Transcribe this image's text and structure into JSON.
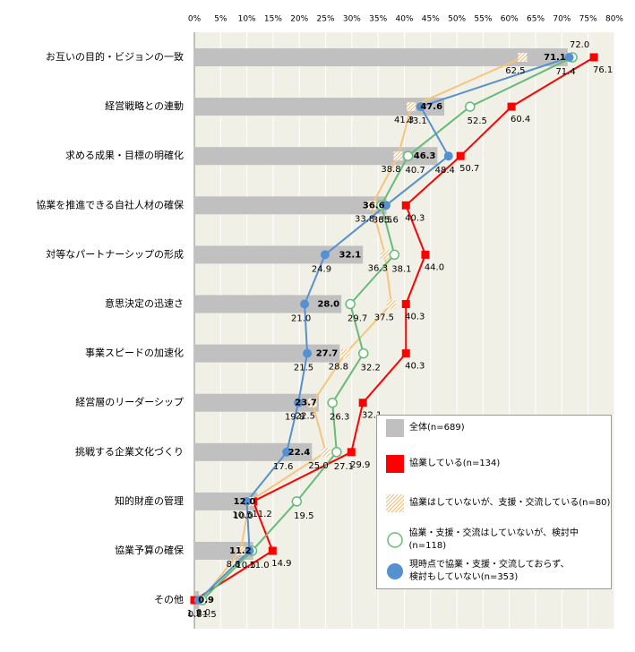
{
  "chart_data": {
    "type": "bar",
    "categories": [
      "お互いの目的・ビジョンの一致",
      "経営戦略との連動",
      "求める成果・目標の明確化",
      "協業を推進できる自社人材の確保",
      "対等なパートナーシップの形成",
      "意思決定の迅速さ",
      "事業スピードの加速化",
      "経営層のリーダーシップ",
      "挑戦する企業文化づくり",
      "知的財産の管理",
      "協業予算の確保",
      "その他"
    ],
    "xlim": [
      0,
      80
    ],
    "xticks": [
      {
        "value": 0,
        "label": "0%"
      },
      {
        "value": 5,
        "label": "5%"
      },
      {
        "value": 10,
        "label": "10%"
      },
      {
        "value": 15,
        "label": "15%"
      },
      {
        "value": 20,
        "label": "20%"
      },
      {
        "value": 25,
        "label": "25%"
      },
      {
        "value": 30,
        "label": "30%"
      },
      {
        "value": 35,
        "label": "35%"
      },
      {
        "value": 40,
        "label": "40%"
      },
      {
        "value": 45,
        "label": "45%"
      },
      {
        "value": 50,
        "label": "50%"
      },
      {
        "value": 55,
        "label": "55%"
      },
      {
        "value": 60,
        "label": "60%"
      },
      {
        "value": 65,
        "label": "65%"
      },
      {
        "value": 70,
        "label": "70%"
      },
      {
        "value": 75,
        "label": "75%"
      },
      {
        "value": 80,
        "label": "80%"
      }
    ],
    "grid": true,
    "series": [
      {
        "name": "全体(n=689)",
        "type": "bar",
        "color": "#c0c0c0",
        "values": [
          71.1,
          47.6,
          46.3,
          36.6,
          32.1,
          28.0,
          27.7,
          23.7,
          22.4,
          12.0,
          11.2,
          0.9
        ],
        "value_labels": [
          "71.1",
          "47.6",
          "46.3",
          "36.6",
          "32.1",
          "28.0",
          "27.7",
          "23.7",
          "22.4",
          "12.0",
          "11.2",
          "0.9"
        ]
      },
      {
        "name": "協業している(n=134)",
        "type": "line",
        "marker": "square",
        "color": "#ff0000",
        "values": [
          76.1,
          60.4,
          50.7,
          40.3,
          44.0,
          40.3,
          40.3,
          32.1,
          29.9,
          11.2,
          14.9,
          0.0
        ],
        "value_labels": [
          "76.1",
          "60.4",
          "50.7",
          "40.3",
          "44.0",
          "40.3",
          "40.3",
          "32.1",
          "29.9",
          "11.2",
          "14.9",
          "0.0"
        ]
      },
      {
        "name": "協業はしていないが、支援・交流している(n=80)",
        "type": "line",
        "marker": "hatch",
        "color": "#f7c47e",
        "values": [
          62.5,
          41.3,
          38.8,
          33.8,
          36.3,
          37.5,
          28.8,
          22.5,
          25.0,
          10.5,
          8.8,
          1.3
        ],
        "value_labels": [
          "62.5",
          "41.3",
          "38.8",
          "33.8",
          "36.3",
          "37.5",
          "28.8",
          "22.5",
          "25.0",
          "10.5",
          "8.8",
          "1.3"
        ]
      },
      {
        "name": "協業・支援・交流はしていないが、検討中(n=118)",
        "type": "line",
        "marker": "circle-open",
        "color": "#66bb77",
        "values": [
          72.0,
          52.5,
          40.7,
          35.6,
          38.1,
          29.7,
          32.2,
          26.3,
          27.1,
          19.5,
          11.0,
          1.5
        ],
        "value_labels": [
          "72.0",
          "52.5",
          "40.7",
          "35.6",
          "38.1",
          "29.7",
          "32.2",
          "26.3",
          "27.1",
          "19.5",
          "11.0",
          "1.5"
        ]
      },
      {
        "name": "現時点で協業・支援・交流しておらず、\n検討もしていない(n=353)",
        "type": "line",
        "marker": "circle",
        "color": "#5590d0",
        "values": [
          71.4,
          43.1,
          48.4,
          36.5,
          24.9,
          21.0,
          21.5,
          19.8,
          17.6,
          10.0,
          10.5,
          0.8
        ],
        "value_labels": [
          "71.4",
          "43.1",
          "48.4",
          "36.5",
          "24.9",
          "21.0",
          "21.5",
          "19.8",
          "17.6",
          "10.0",
          "10.5",
          "0.8"
        ]
      }
    ]
  }
}
